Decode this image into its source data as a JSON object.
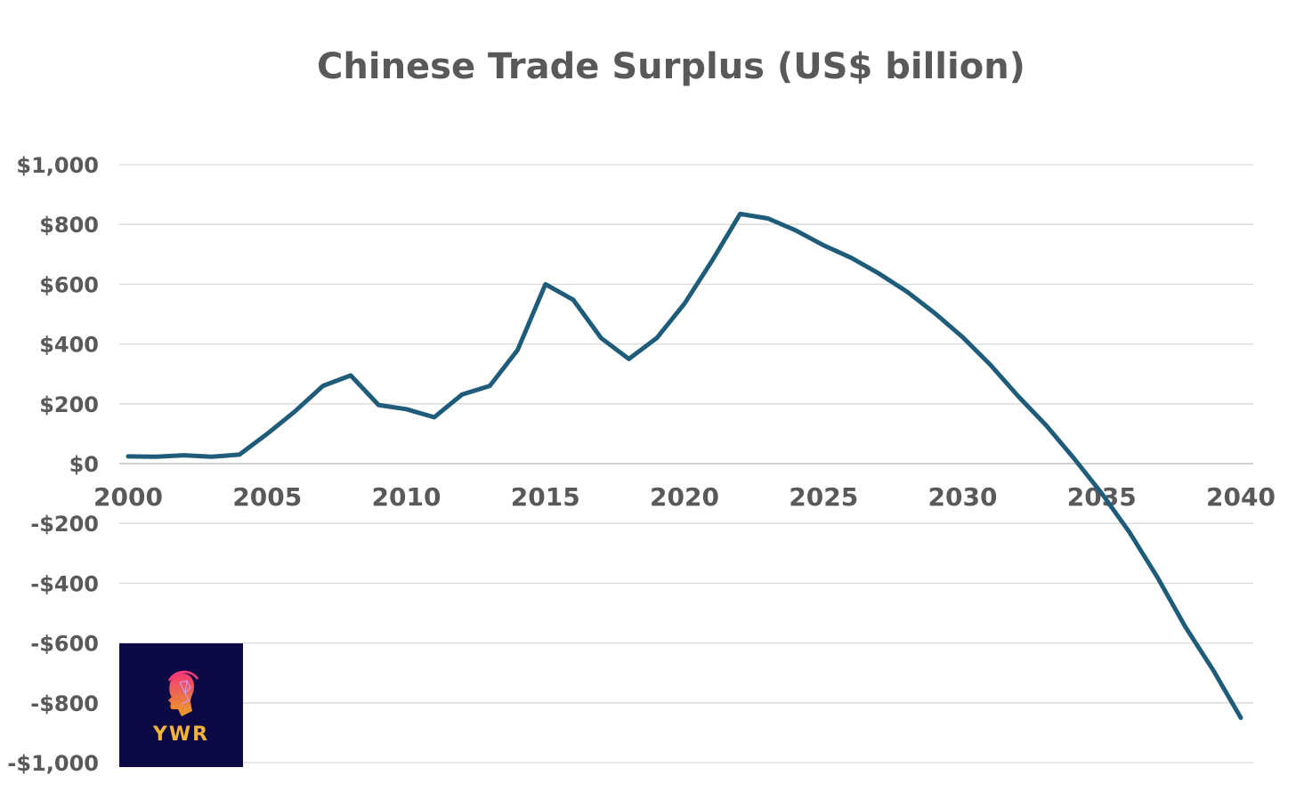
{
  "chart_data": {
    "type": "line",
    "title": "Chinese Trade Surplus (US$ billion)",
    "xlabel": "",
    "ylabel": "",
    "xlim": [
      2000,
      2040
    ],
    "ylim": [
      -1000,
      1000
    ],
    "x_ticks": [
      "2000",
      "2005",
      "2010",
      "2015",
      "2020",
      "2025",
      "2030",
      "2035",
      "2040"
    ],
    "y_ticks": [
      "$1,000",
      "$800",
      "$600",
      "$400",
      "$200",
      "$0",
      "-$200",
      "-$400",
      "-$600",
      "-$800",
      "-$1,000"
    ],
    "y_tick_values": [
      1000,
      800,
      600,
      400,
      200,
      0,
      -200,
      -400,
      -600,
      -800,
      -1000
    ],
    "grid": true,
    "line_color": "#1f5c7a",
    "series": [
      {
        "x": [
          2000,
          2001,
          2002,
          2003,
          2004,
          2005,
          2006,
          2007,
          2008,
          2009,
          2010,
          2011,
          2012,
          2013,
          2014,
          2015,
          2016,
          2017,
          2018,
          2019,
          2020,
          2021,
          2022,
          2023,
          2024,
          2025,
          2026,
          2027,
          2028,
          2029,
          2030,
          2031,
          2032,
          2033,
          2034,
          2035,
          2036,
          2037,
          2038,
          2039,
          2040
        ],
        "values": [
          24,
          23,
          28,
          23,
          30,
          100,
          175,
          260,
          295,
          196,
          182,
          155,
          231,
          260,
          380,
          600,
          548,
          420,
          350,
          420,
          535,
          680,
          835,
          820,
          780,
          730,
          688,
          635,
          575,
          503,
          423,
          330,
          225,
          128,
          18,
          -100,
          -230,
          -380,
          -545,
          -690,
          -850
        ]
      }
    ]
  },
  "logo": {
    "text": "YWR",
    "background": "#0c0a45",
    "text_color": "#f5b33a"
  }
}
